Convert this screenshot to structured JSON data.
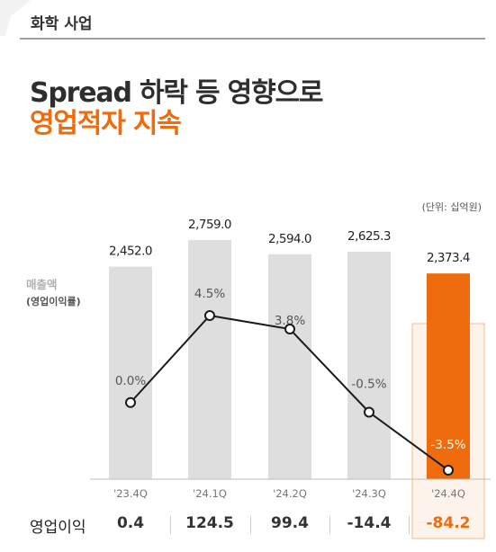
{
  "section": {
    "label": "화학 사업"
  },
  "headline": {
    "line1": "Spread 하락 등 영향으로",
    "line2": "영업적자 지속"
  },
  "unit_label": "(단위: 십억원)",
  "axis": {
    "title": "매출액",
    "subtitle": "(영업이익률)"
  },
  "operating_profit": {
    "label": "영업이익",
    "values": [
      "0.4",
      "124.5",
      "99.4",
      "-14.4",
      "-84.2"
    ]
  },
  "colors": {
    "accent": "#ee6c0e",
    "bar": "#dedede",
    "line": "#1a1a1a",
    "highlight_bg": "#fdf3ea",
    "highlight_border": "#f5b98a"
  },
  "chart_data": {
    "type": "bar",
    "categories": [
      "'23.4Q",
      "'24.1Q",
      "'24.2Q",
      "'24.3Q",
      "'24.4Q"
    ],
    "series": [
      {
        "name": "매출액",
        "type": "bar",
        "values": [
          2452.0,
          2759.0,
          2594.0,
          2625.3,
          2373.4
        ]
      },
      {
        "name": "영업이익률",
        "type": "line",
        "values": [
          0.0,
          4.5,
          3.8,
          -0.5,
          -3.5
        ]
      }
    ],
    "bar_labels": [
      "2,452.0",
      "2,759.0",
      "2,594.0",
      "2,625.3",
      "2,373.4"
    ],
    "line_labels": [
      "0.0%",
      "4.5%",
      "3.8%",
      "-0.5%",
      "-3.5%"
    ],
    "highlight_index": 4
  }
}
